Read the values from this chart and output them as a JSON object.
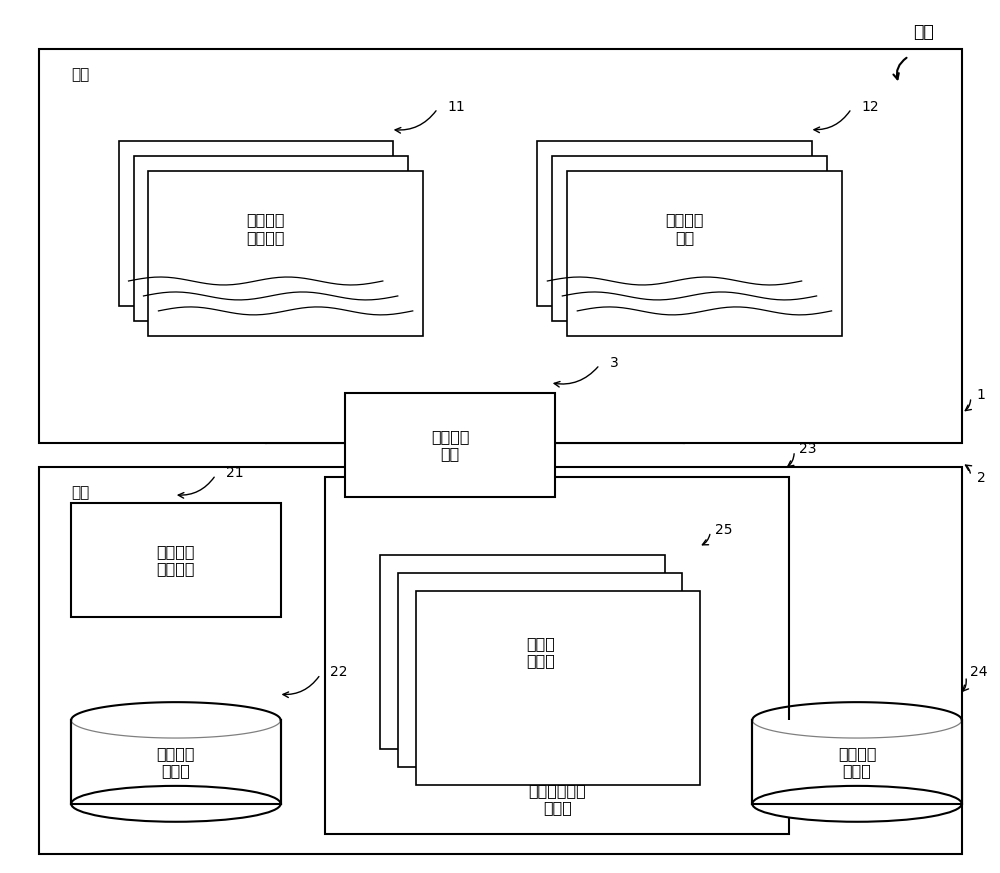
{
  "fig_width": 10.0,
  "fig_height": 8.73,
  "bg_color": "#ffffff",
  "title_label": "系统",
  "network1_label": "网络",
  "network2_label": "网络",
  "box3_label": "分组转发\n装置",
  "box11_label": "漏洞信息\n发布网站",
  "box12_label": "分析对象\n网站",
  "box21_label": "漏洞信息\n收集装置",
  "box22_label": "漏洞信息\n数据库",
  "box23_label": "浏览器模拟器\n管理器",
  "box24_label": "分析信息\n数据库",
  "box25_label": "浏览器\n模拟器",
  "label_1": "1",
  "label_2": "2",
  "label_3": "3",
  "label_11": "11",
  "label_12": "12",
  "label_21": "21",
  "label_22": "22",
  "label_23": "23",
  "label_24": "24",
  "label_25": "25"
}
